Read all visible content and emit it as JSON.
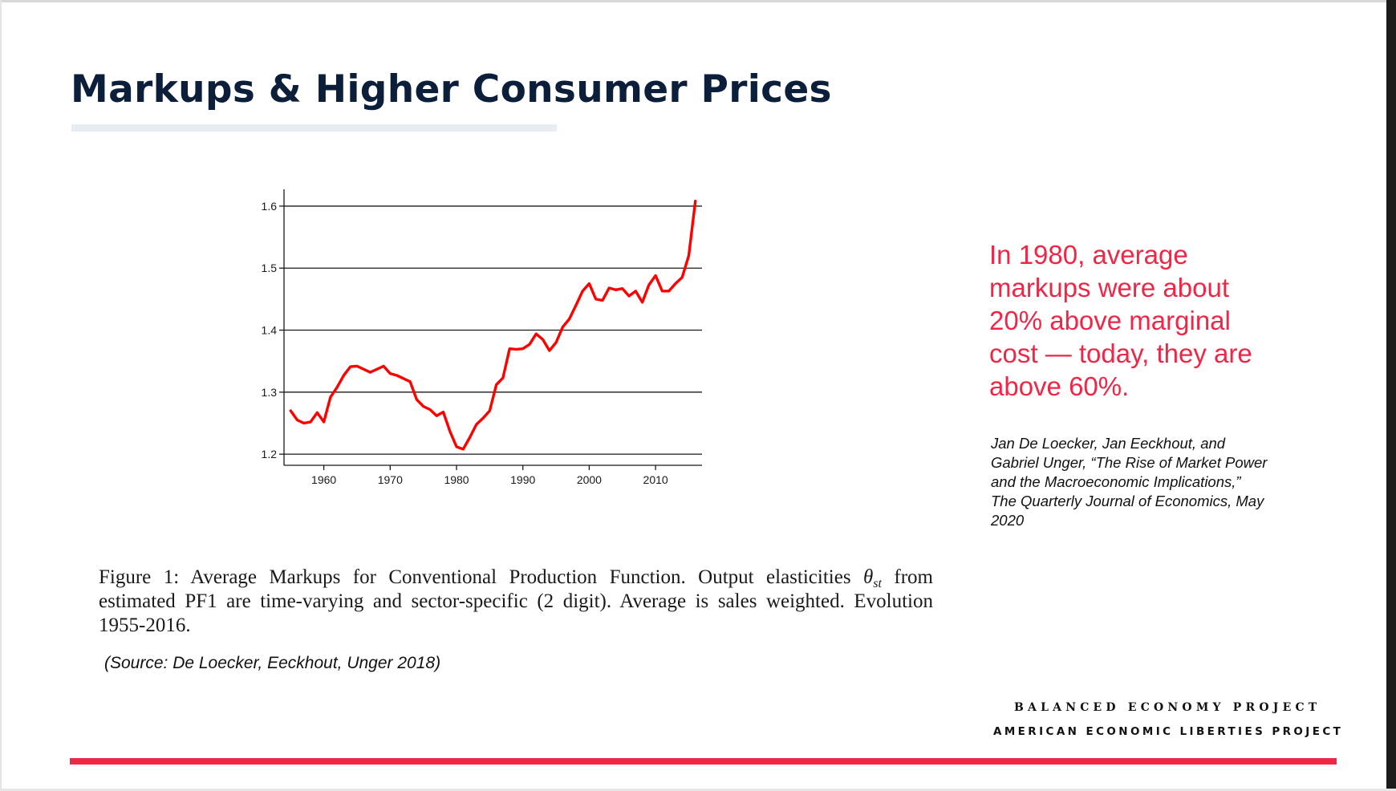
{
  "slide": {
    "title": "Markups & Higher Consumer Prices",
    "callout": "In 1980, average markups were about 20% above marginal cost — today, they are above 60%.",
    "citation": "Jan De Loecker, Jan Eeckhout, and Gabriel Unger, “The Rise of Market Power and the Macroeconomic Implications,” The Quarterly Journal of Economics, May 2020",
    "source": "(Source: De Loecker, Eeckhout, Unger 2018)",
    "org_primary": "BALANCED ECONOMY PROJECT",
    "org_secondary": "AMERICAN ECONOMIC LIBERTIES PROJECT"
  },
  "figure": {
    "caption_part1": "Figure 1: Average Markups for Conventional Production Function. Output elasticities ",
    "caption_theta": "θ",
    "caption_sub": "st",
    "caption_part2": " from estimated PF1 are time-varying and sector-specific (2 digit). Average is sales weighted. Evolution 1955-2016."
  },
  "colors": {
    "title": "#0c1f3a",
    "accent_red": "#ee2747",
    "line": "#ff0000",
    "gridline": "#1a1a1a"
  },
  "chart_data": {
    "type": "line",
    "title": "",
    "xlabel": "",
    "ylabel": "",
    "xlim": [
      1954,
      2017
    ],
    "ylim": [
      1.195,
      1.618
    ],
    "xticks": [
      1960,
      1970,
      1980,
      1990,
      2000,
      2010
    ],
    "yticks": [
      1.2,
      1.3,
      1.4,
      1.5,
      1.6
    ],
    "ytick_labels": [
      "1.2",
      "1.3",
      "1.4",
      "1.5",
      "1.6"
    ],
    "grid": "horizontal",
    "series": [
      {
        "name": "Average markup",
        "x": [
          1955,
          1956,
          1957,
          1958,
          1959,
          1960,
          1961,
          1962,
          1963,
          1964,
          1965,
          1966,
          1967,
          1968,
          1969,
          1970,
          1971,
          1972,
          1973,
          1974,
          1975,
          1976,
          1977,
          1978,
          1979,
          1980,
          1981,
          1982,
          1983,
          1984,
          1985,
          1986,
          1987,
          1988,
          1989,
          1990,
          1991,
          1992,
          1993,
          1994,
          1995,
          1996,
          1997,
          1998,
          1999,
          2000,
          2001,
          2002,
          2003,
          2004,
          2005,
          2006,
          2007,
          2008,
          2009,
          2010,
          2011,
          2012,
          2013,
          2014,
          2015,
          2016
        ],
        "y": [
          1.27,
          1.255,
          1.25,
          1.252,
          1.267,
          1.252,
          1.292,
          1.308,
          1.327,
          1.341,
          1.342,
          1.337,
          1.332,
          1.337,
          1.342,
          1.33,
          1.327,
          1.322,
          1.317,
          1.288,
          1.277,
          1.272,
          1.262,
          1.268,
          1.237,
          1.212,
          1.208,
          1.227,
          1.248,
          1.258,
          1.27,
          1.312,
          1.323,
          1.37,
          1.369,
          1.37,
          1.377,
          1.394,
          1.385,
          1.367,
          1.38,
          1.405,
          1.418,
          1.44,
          1.463,
          1.475,
          1.45,
          1.448,
          1.468,
          1.465,
          1.467,
          1.455,
          1.463,
          1.445,
          1.473,
          1.488,
          1.463,
          1.463,
          1.475,
          1.485,
          1.52,
          1.608
        ]
      }
    ]
  }
}
